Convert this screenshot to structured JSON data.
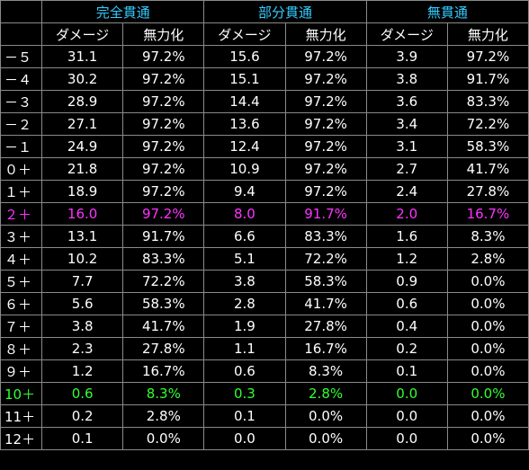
{
  "header": {
    "groups": [
      "完全貫通",
      "部分貫通",
      "無貫通"
    ],
    "sub_damage": "ダメージ",
    "sub_nullify": "無力化"
  },
  "colors": {
    "background": "#000000",
    "text": "#ffffff",
    "group_header": "#33ccff",
    "highlight_magenta": "#ff33ff",
    "highlight_green": "#33ff33",
    "grid": "#8a8a8a"
  },
  "rows": [
    {
      "label": "－５",
      "v": [
        "31.1",
        "97.2%",
        "15.6",
        "97.2%",
        "3.9",
        "97.2%"
      ],
      "highlight": ""
    },
    {
      "label": "－４",
      "v": [
        "30.2",
        "97.2%",
        "15.1",
        "97.2%",
        "3.8",
        "91.7%"
      ],
      "highlight": ""
    },
    {
      "label": "－３",
      "v": [
        "28.9",
        "97.2%",
        "14.4",
        "97.2%",
        "3.6",
        "83.3%"
      ],
      "highlight": ""
    },
    {
      "label": "－２",
      "v": [
        "27.1",
        "97.2%",
        "13.6",
        "97.2%",
        "3.4",
        "72.2%"
      ],
      "highlight": ""
    },
    {
      "label": "－１",
      "v": [
        "24.9",
        "97.2%",
        "12.4",
        "97.2%",
        "3.1",
        "58.3%"
      ],
      "highlight": ""
    },
    {
      "label": "０＋",
      "v": [
        "21.8",
        "97.2%",
        "10.9",
        "97.2%",
        "2.7",
        "41.7%"
      ],
      "highlight": ""
    },
    {
      "label": "１＋",
      "v": [
        "18.9",
        "97.2%",
        "9.4",
        "97.2%",
        "2.4",
        "27.8%"
      ],
      "highlight": ""
    },
    {
      "label": "２＋",
      "v": [
        "16.0",
        "97.2%",
        "8.0",
        "91.7%",
        "2.0",
        "16.7%"
      ],
      "highlight": "magenta"
    },
    {
      "label": "３＋",
      "v": [
        "13.1",
        "91.7%",
        "6.6",
        "83.3%",
        "1.6",
        "8.3%"
      ],
      "highlight": ""
    },
    {
      "label": "４＋",
      "v": [
        "10.2",
        "83.3%",
        "5.1",
        "72.2%",
        "1.2",
        "2.8%"
      ],
      "highlight": ""
    },
    {
      "label": "５＋",
      "v": [
        "7.7",
        "72.2%",
        "3.8",
        "58.3%",
        "0.9",
        "0.0%"
      ],
      "highlight": ""
    },
    {
      "label": "６＋",
      "v": [
        "5.6",
        "58.3%",
        "2.8",
        "41.7%",
        "0.6",
        "0.0%"
      ],
      "highlight": ""
    },
    {
      "label": "７＋",
      "v": [
        "3.8",
        "41.7%",
        "1.9",
        "27.8%",
        "0.4",
        "0.0%"
      ],
      "highlight": ""
    },
    {
      "label": "８＋",
      "v": [
        "2.3",
        "27.8%",
        "1.1",
        "16.7%",
        "0.2",
        "0.0%"
      ],
      "highlight": ""
    },
    {
      "label": "９＋",
      "v": [
        "1.2",
        "16.7%",
        "0.6",
        "8.3%",
        "0.1",
        "0.0%"
      ],
      "highlight": ""
    },
    {
      "label": "10＋",
      "v": [
        "0.6",
        "8.3%",
        "0.3",
        "2.8%",
        "0.0",
        "0.0%"
      ],
      "highlight": "green"
    },
    {
      "label": "11＋",
      "v": [
        "0.2",
        "2.8%",
        "0.1",
        "0.0%",
        "0.0",
        "0.0%"
      ],
      "highlight": ""
    },
    {
      "label": "12＋",
      "v": [
        "0.1",
        "0.0%",
        "0.0",
        "0.0%",
        "0.0",
        "0.0%"
      ],
      "highlight": ""
    }
  ]
}
